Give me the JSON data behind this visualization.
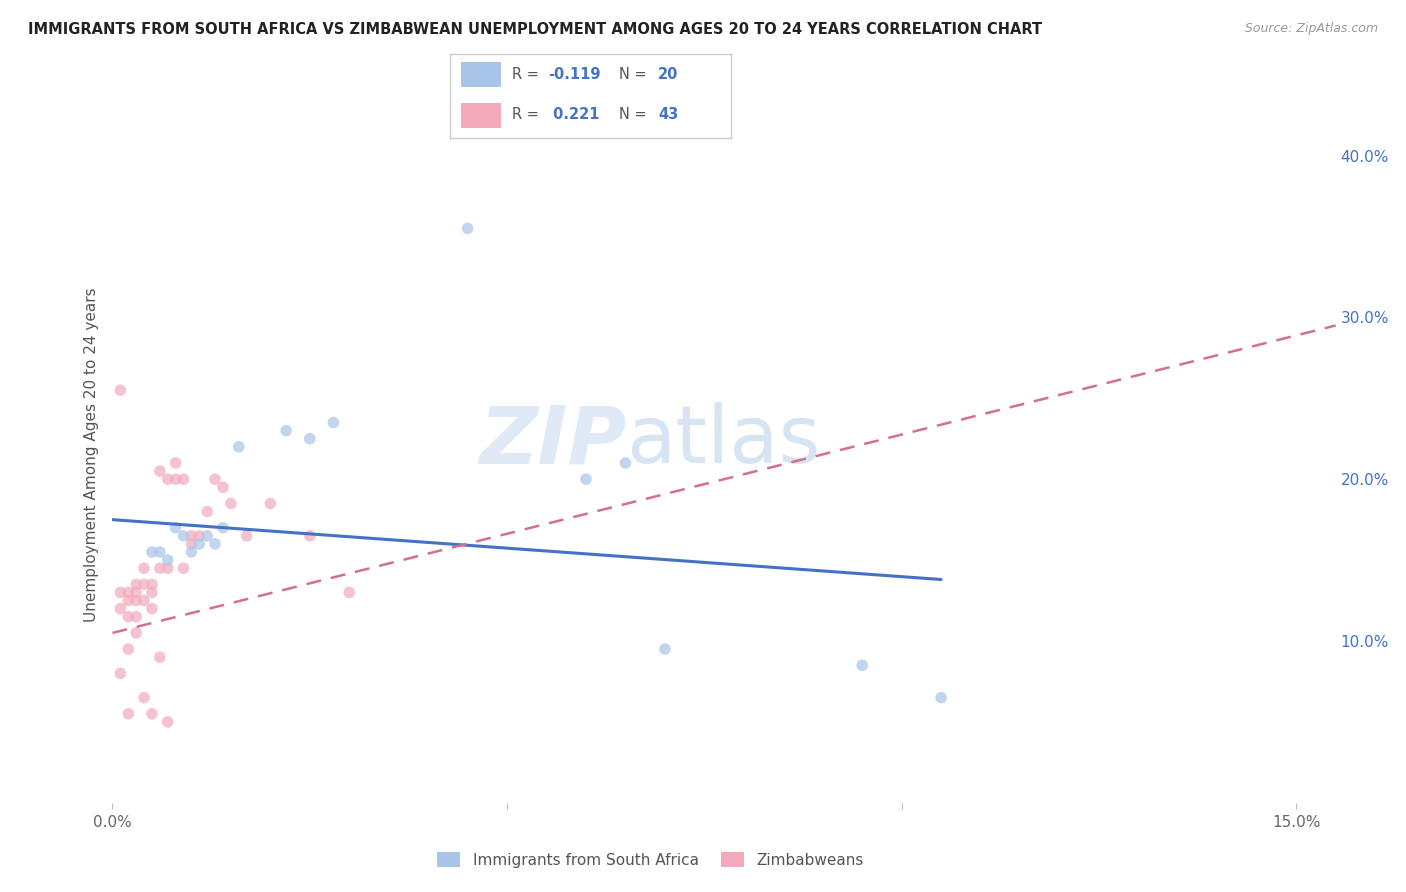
{
  "title": "IMMIGRANTS FROM SOUTH AFRICA VS ZIMBABWEAN UNEMPLOYMENT AMONG AGES 20 TO 24 YEARS CORRELATION CHART",
  "source": "Source: ZipAtlas.com",
  "ylabel": "Unemployment Among Ages 20 to 24 years",
  "xlim": [
    0.0,
    0.155
  ],
  "ylim": [
    0.0,
    0.43
  ],
  "xticks": [
    0.0,
    0.05,
    0.1,
    0.15
  ],
  "xtick_labels": [
    "0.0%",
    "",
    "",
    "15.0%"
  ],
  "yticks_right": [
    0.1,
    0.2,
    0.3,
    0.4
  ],
  "ytick_labels_right": [
    "10.0%",
    "20.0%",
    "30.0%",
    "40.0%"
  ],
  "blue_color": "#A8C4E8",
  "pink_color": "#F2AABB",
  "blue_line_color": "#4472C4",
  "pink_line_color": "#D4708A",
  "watermark_zip": "ZIP",
  "watermark_atlas": "atlas",
  "legend_entries": [
    "Immigrants from South Africa",
    "Zimbabweans"
  ],
  "blue_scatter_x": [
    0.005,
    0.006,
    0.007,
    0.008,
    0.009,
    0.01,
    0.011,
    0.012,
    0.013,
    0.014,
    0.016,
    0.022,
    0.025,
    0.028,
    0.045,
    0.06,
    0.065,
    0.07,
    0.095,
    0.105
  ],
  "blue_scatter_y": [
    0.155,
    0.155,
    0.15,
    0.17,
    0.165,
    0.155,
    0.16,
    0.165,
    0.16,
    0.17,
    0.22,
    0.23,
    0.225,
    0.235,
    0.355,
    0.2,
    0.21,
    0.095,
    0.085,
    0.065
  ],
  "pink_scatter_x": [
    0.001,
    0.001,
    0.001,
    0.001,
    0.002,
    0.002,
    0.002,
    0.002,
    0.002,
    0.003,
    0.003,
    0.003,
    0.003,
    0.003,
    0.004,
    0.004,
    0.004,
    0.004,
    0.005,
    0.005,
    0.005,
    0.005,
    0.006,
    0.006,
    0.006,
    0.007,
    0.007,
    0.007,
    0.008,
    0.008,
    0.009,
    0.009,
    0.01,
    0.01,
    0.011,
    0.012,
    0.013,
    0.014,
    0.015,
    0.017,
    0.02,
    0.025,
    0.03
  ],
  "pink_scatter_y": [
    0.255,
    0.13,
    0.12,
    0.08,
    0.13,
    0.125,
    0.115,
    0.095,
    0.055,
    0.135,
    0.13,
    0.125,
    0.115,
    0.105,
    0.145,
    0.135,
    0.125,
    0.065,
    0.135,
    0.13,
    0.12,
    0.055,
    0.205,
    0.145,
    0.09,
    0.2,
    0.145,
    0.05,
    0.21,
    0.2,
    0.2,
    0.145,
    0.165,
    0.16,
    0.165,
    0.18,
    0.2,
    0.195,
    0.185,
    0.165,
    0.185,
    0.165,
    0.13
  ],
  "blue_line_x": [
    0.0,
    0.105
  ],
  "blue_line_y": [
    0.175,
    0.138
  ],
  "pink_line_x": [
    0.0,
    0.155
  ],
  "pink_line_y": [
    0.105,
    0.295
  ],
  "grid_color": "#DDDDDD",
  "background_color": "#FFFFFF",
  "dot_size": 70,
  "dot_alpha": 0.7
}
